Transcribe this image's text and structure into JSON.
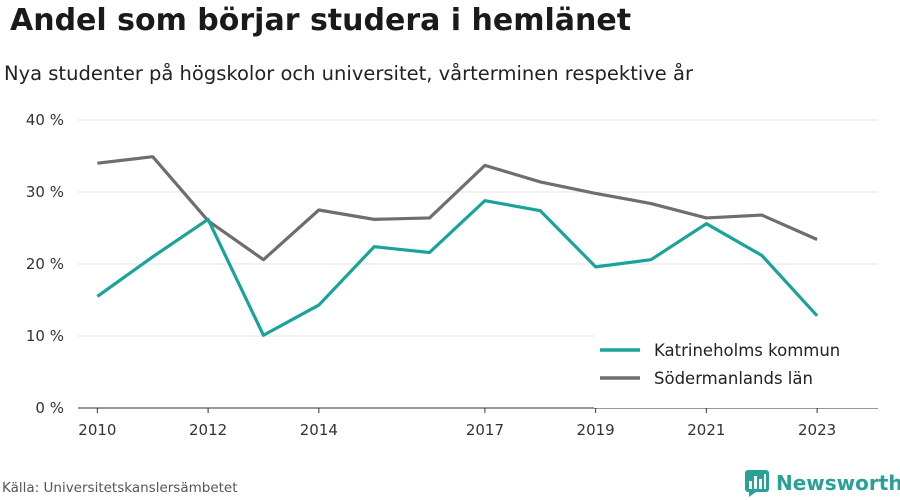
{
  "title": "Andel som börjar studera i hemlänet",
  "subtitle": "Nya studenter på högskolor och universitet, vårterminen respektive år",
  "source": "Källa: Universitetskanslersämbetet",
  "brand": {
    "name": "Newsworthy",
    "color": "#2aa198"
  },
  "chart_data": {
    "type": "line",
    "x": [
      2010,
      2011,
      2012,
      2013,
      2014,
      2015,
      2016,
      2017,
      2018,
      2019,
      2020,
      2021,
      2022,
      2023
    ],
    "x_tick_labels": [
      "2010",
      "2012",
      "2014",
      "2017",
      "2019",
      "2021",
      "2023"
    ],
    "y_tick_labels": [
      "0 %",
      "10 %",
      "20 %",
      "30 %",
      "40 %"
    ],
    "ylim": [
      0,
      40
    ],
    "grid": true,
    "legend_position": "bottom-right",
    "series": [
      {
        "name": "Katrineholms kommun",
        "color": "#1aa39a",
        "values": [
          15.5,
          21.0,
          26.2,
          10.1,
          14.3,
          22.4,
          21.6,
          28.8,
          27.4,
          19.6,
          20.6,
          25.6,
          21.2,
          12.8
        ]
      },
      {
        "name": "Södermanlands län",
        "color": "#6e6e70",
        "values": [
          34.0,
          34.9,
          26.0,
          20.6,
          27.5,
          26.2,
          26.4,
          33.7,
          31.4,
          29.8,
          28.4,
          26.4,
          26.8,
          23.4
        ]
      }
    ]
  }
}
